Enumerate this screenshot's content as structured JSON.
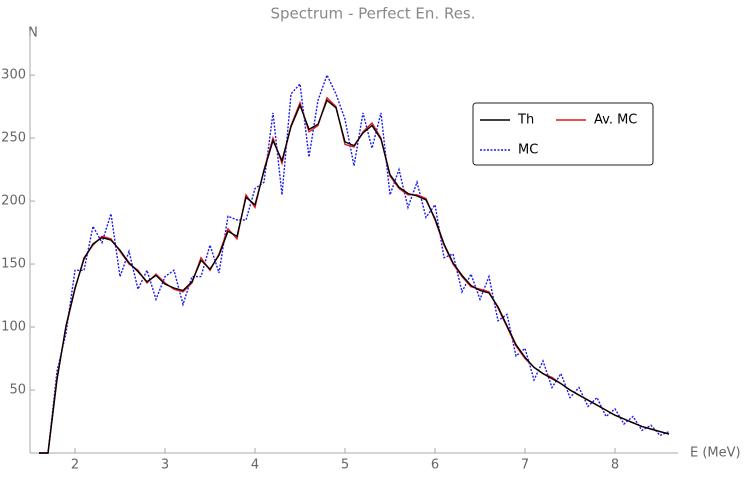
{
  "chart_data": {
    "type": "line",
    "title": "Spectrum - Perfect En. Res.",
    "xlabel": "E (MeV)",
    "ylabel": "N",
    "x": [
      1.6,
      1.7,
      1.8,
      1.9,
      2.0,
      2.1,
      2.2,
      2.3,
      2.4,
      2.5,
      2.6,
      2.7,
      2.8,
      2.9,
      3.0,
      3.1,
      3.2,
      3.3,
      3.4,
      3.5,
      3.6,
      3.7,
      3.8,
      3.9,
      4.0,
      4.1,
      4.2,
      4.3,
      4.4,
      4.5,
      4.6,
      4.7,
      4.8,
      4.9,
      5.0,
      5.1,
      5.2,
      5.3,
      5.4,
      5.5,
      5.6,
      5.7,
      5.8,
      5.9,
      6.0,
      6.1,
      6.2,
      6.3,
      6.4,
      6.5,
      6.6,
      6.7,
      6.8,
      6.9,
      7.0,
      7.1,
      7.2,
      7.3,
      7.4,
      7.5,
      7.6,
      7.7,
      7.8,
      7.9,
      8.0,
      8.1,
      8.2,
      8.3,
      8.4,
      8.5,
      8.6
    ],
    "series": [
      {
        "name": "Th",
        "color": "#000000",
        "dash": "solid",
        "values": [
          0,
          0,
          58,
          101,
          131,
          154,
          166,
          171,
          169,
          161,
          151,
          144,
          136,
          141,
          134,
          131,
          129,
          136,
          153,
          146,
          157,
          176,
          172,
          203,
          197,
          224,
          248,
          232,
          259,
          276,
          257,
          261,
          280,
          274,
          247,
          244,
          254,
          260,
          249,
          221,
          211,
          206,
          204,
          201,
          186,
          166,
          151,
          141,
          133,
          129,
          127,
          116,
          101,
          86,
          76,
          68,
          63,
          59,
          55,
          50,
          46,
          42,
          38,
          34,
          30,
          27,
          24,
          21,
          19,
          17,
          15
        ]
      },
      {
        "name": "Av. MC",
        "color": "#e0181e",
        "dash": "solid",
        "values": [
          0,
          0,
          60,
          100,
          130,
          155,
          165,
          172,
          170,
          160,
          150,
          145,
          135,
          142,
          135,
          130,
          128,
          135,
          155,
          145,
          158,
          178,
          170,
          205,
          195,
          225,
          250,
          230,
          260,
          278,
          255,
          260,
          282,
          275,
          245,
          243,
          255,
          262,
          250,
          220,
          210,
          205,
          205,
          202,
          185,
          165,
          150,
          140,
          132,
          130,
          128,
          115,
          100,
          85,
          75,
          68,
          63,
          60,
          55,
          50,
          46,
          42,
          38,
          34,
          30,
          27,
          24,
          21,
          19,
          17,
          15
        ]
      },
      {
        "name": "MC",
        "color": "#1a1af0",
        "dash": "dotted",
        "values": [
          0,
          0,
          65,
          95,
          145,
          145,
          180,
          167,
          190,
          140,
          160,
          130,
          145,
          122,
          140,
          145,
          118,
          140,
          140,
          165,
          143,
          188,
          185,
          185,
          210,
          215,
          270,
          205,
          285,
          293,
          235,
          280,
          300,
          285,
          265,
          228,
          270,
          242,
          270,
          205,
          225,
          195,
          215,
          187,
          197,
          155,
          158,
          128,
          142,
          122,
          140,
          105,
          110,
          77,
          83,
          58,
          73,
          52,
          63,
          44,
          52,
          37,
          44,
          29,
          35,
          23,
          29,
          18,
          22,
          14,
          17
        ]
      }
    ],
    "xlim": [
      1.5,
      8.7
    ],
    "ylim": [
      0,
      335
    ],
    "xticks": [
      2,
      3,
      4,
      5,
      6,
      7,
      8
    ],
    "yticks": [
      50,
      100,
      150,
      200,
      250,
      300
    ],
    "legend": "upper right"
  }
}
